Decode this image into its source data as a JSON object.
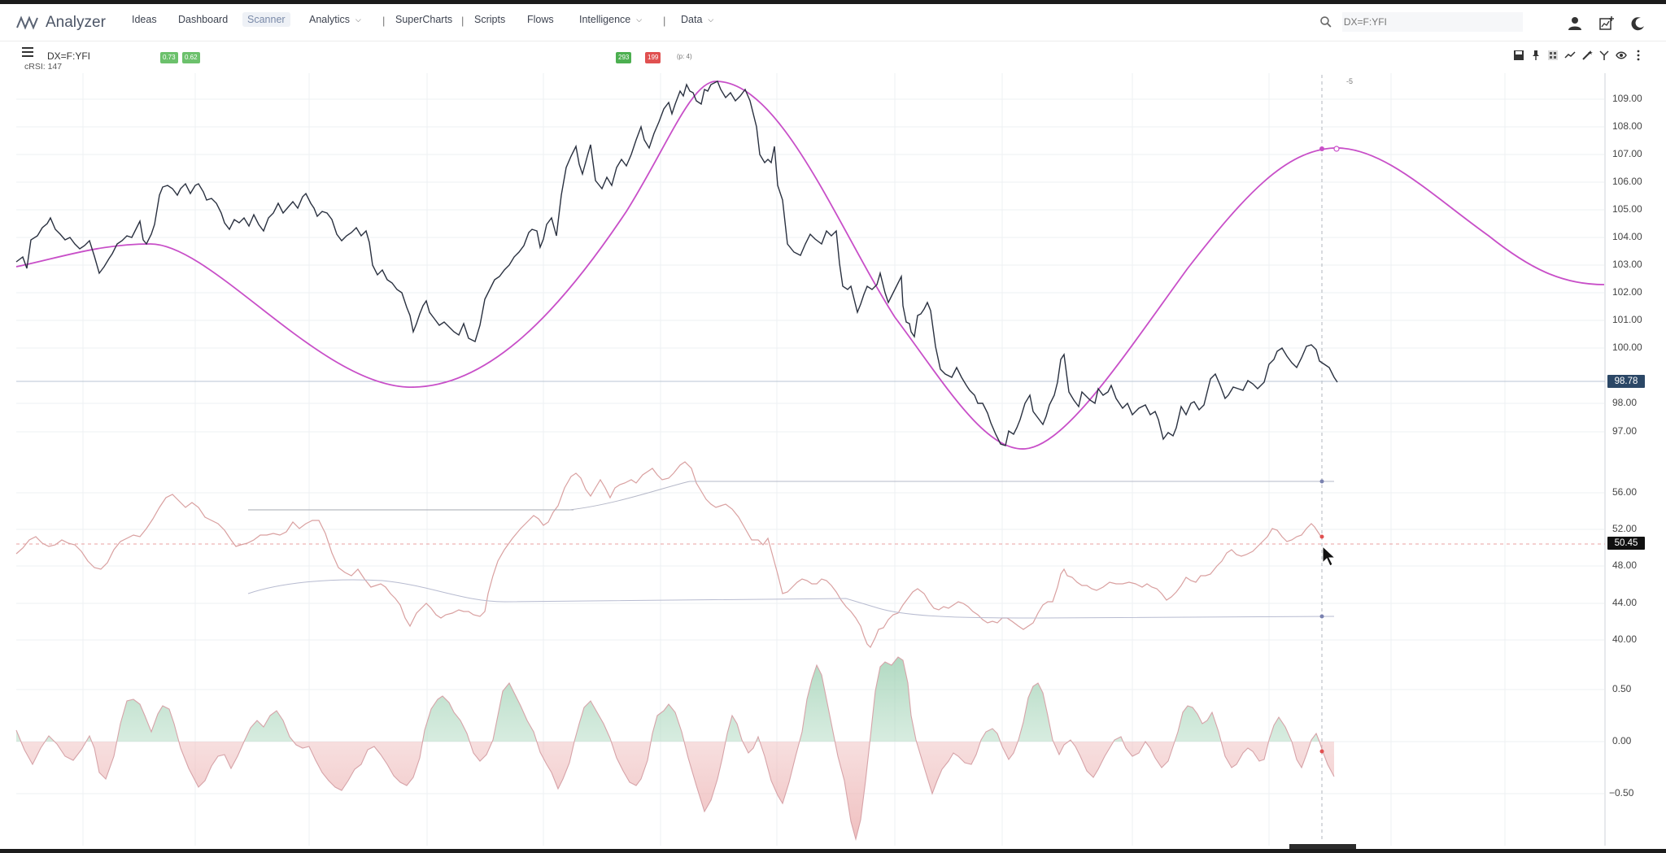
{
  "app": {
    "name": "Analyzer"
  },
  "nav": {
    "ideas": "Ideas",
    "dashboard": "Dashboard",
    "scanner": "Scanner",
    "analytics": "Analytics",
    "superchart": "SuperCharts",
    "scripts": "Scripts",
    "flows": "Flows",
    "intelligence": "Intelligence",
    "data": "Data",
    "separator": "|"
  },
  "search": {
    "placeholder": "DX=F:YFI"
  },
  "chart_header": {
    "symbol": "DX=F:YFI",
    "indicator": "cRSI: 147",
    "badge_a": "0.73",
    "badge_b": "0.62",
    "badge_up": "293",
    "badge_down": "199",
    "period_info": "(p: 4)"
  },
  "colors": {
    "accent_magenta": "#c84fc8",
    "price_line": "#2a3140",
    "up": "#4caf50",
    "down": "#e05050",
    "tag_navy": "#2b4766"
  },
  "price_axis": {
    "ticks": [
      "109.00",
      "108.00",
      "107.00",
      "106.00",
      "105.00",
      "104.00",
      "103.00",
      "102.00",
      "101.00",
      "100.00",
      "98.00",
      "97.00"
    ],
    "current": "98.78"
  },
  "rsi_axis": {
    "ticks": [
      "56.00",
      "52.00",
      "48.00",
      "44.00",
      "40.00"
    ],
    "current": "50.45"
  },
  "osc_axis": {
    "ticks": [
      "0.50",
      "0.00",
      "−0.50"
    ]
  },
  "cursor_label": "-5"
}
